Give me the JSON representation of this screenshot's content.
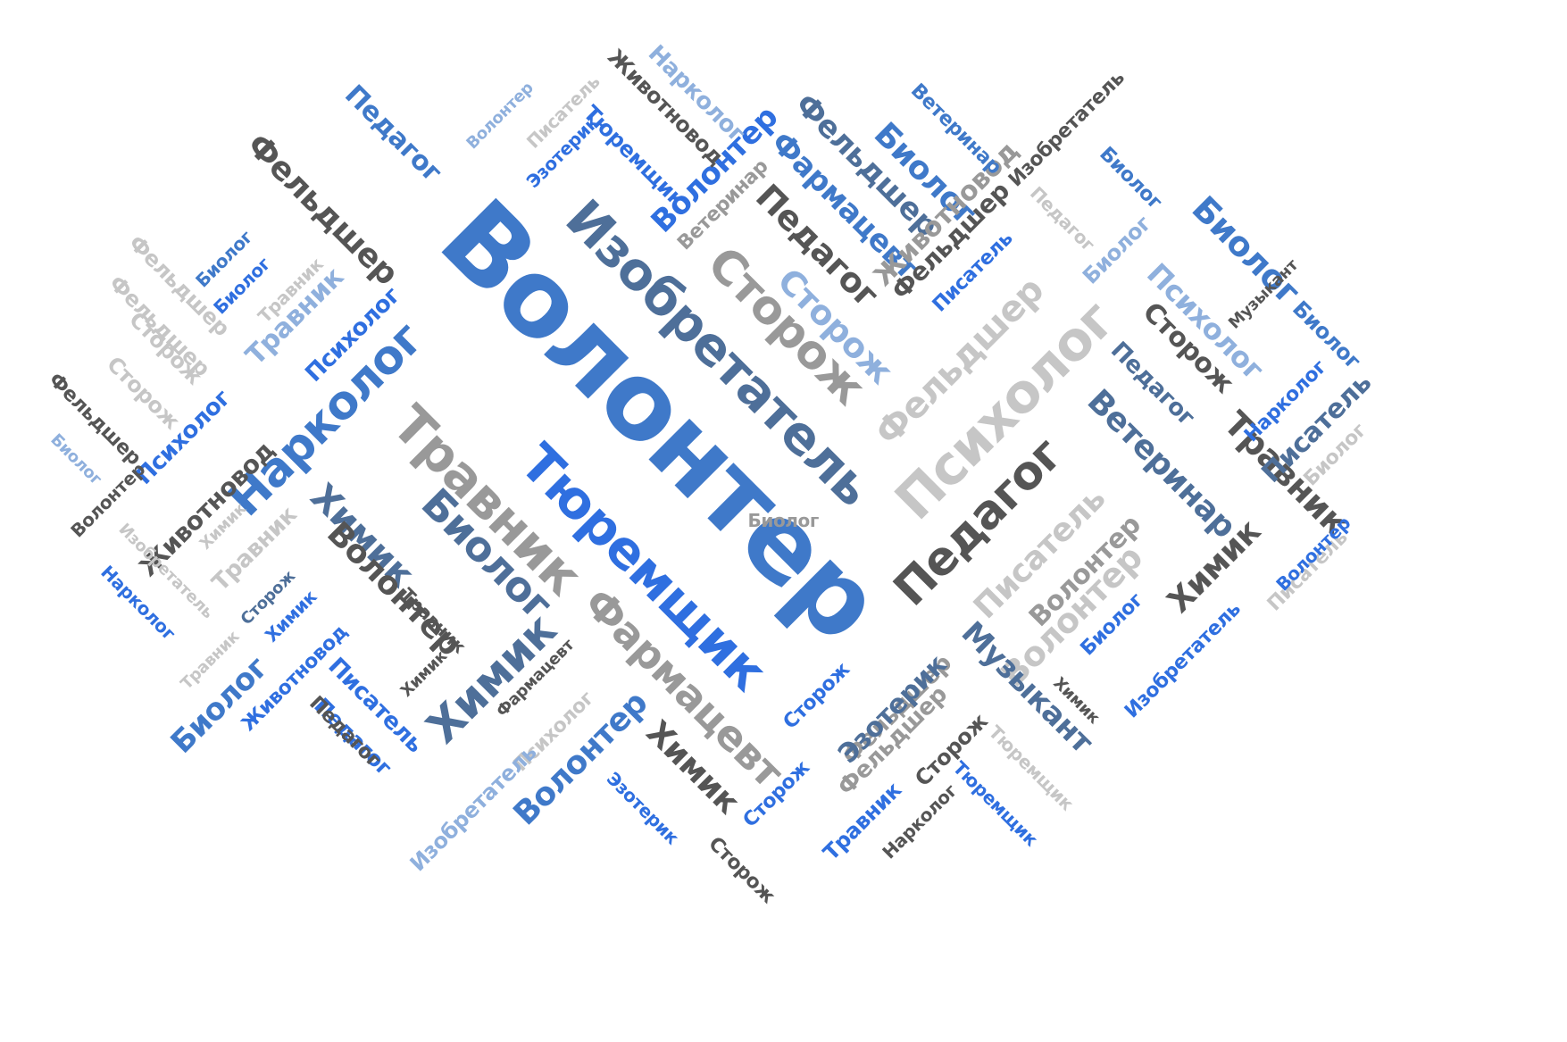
{
  "palette": {
    "mid_blue": "#3f79c9",
    "bright_blue": "#2f6fe0",
    "light_blue": "#8fb0dd",
    "slate_blue": "#4e6f99",
    "dark_grey": "#555555",
    "mid_grey": "#999999",
    "light_grey": "#c6c6c6"
  },
  "words": [
    {
      "text": "Волонтер"
    },
    {
      "text": "Изобретатель"
    },
    {
      "text": "Тюремщик"
    },
    {
      "text": "Травник"
    },
    {
      "text": "Сторож"
    },
    {
      "text": "Сторож"
    },
    {
      "text": "Фармацевт"
    },
    {
      "text": "Психолог"
    },
    {
      "text": "Педагог"
    },
    {
      "text": "Фельдшер"
    },
    {
      "text": "Нарколог"
    },
    {
      "text": "Биолог"
    },
    {
      "text": "Химик"
    },
    {
      "text": "Химик"
    },
    {
      "text": "Фельдшер"
    },
    {
      "text": "Волонтер"
    },
    {
      "text": "Писатель"
    },
    {
      "text": "Волонтер"
    },
    {
      "text": "Ветеринар"
    },
    {
      "text": "Музыкант"
    },
    {
      "text": "Травник"
    },
    {
      "text": "Химик"
    },
    {
      "text": "Волонтер"
    },
    {
      "text": "Биолог"
    },
    {
      "text": "Педагог"
    },
    {
      "text": "Биолог"
    },
    {
      "text": "Фельдшер"
    },
    {
      "text": "Фармацевт"
    },
    {
      "text": "Фельдшер"
    },
    {
      "text": "Фельдшер"
    },
    {
      "text": "Волонтер"
    },
    {
      "text": "Изобретатель"
    },
    {
      "text": "Сторож"
    },
    {
      "text": "Нарколог"
    },
    {
      "text": "Животновод"
    },
    {
      "text": "Тюремщик"
    },
    {
      "text": "Писатель"
    },
    {
      "text": "Ветеринар"
    },
    {
      "text": "Педагог"
    },
    {
      "text": "Животновод"
    },
    {
      "text": "Биолог"
    },
    {
      "text": "Педагог"
    },
    {
      "text": "Биолог"
    },
    {
      "text": "Ветеринар"
    },
    {
      "text": "Изобретатель"
    },
    {
      "text": "Животновод"
    },
    {
      "text": "Писатель"
    },
    {
      "text": "Биолог"
    },
    {
      "text": "Психолог"
    },
    {
      "text": "Музыкант"
    },
    {
      "text": "Сторож"
    },
    {
      "text": "Биолог"
    },
    {
      "text": "Нарколог"
    },
    {
      "text": "Писатель"
    },
    {
      "text": "Биолог"
    },
    {
      "text": "Волонтер"
    },
    {
      "text": "Педагог"
    },
    {
      "text": "Психолог"
    },
    {
      "text": "Травник"
    },
    {
      "text": "Биолог"
    },
    {
      "text": "Биолог"
    },
    {
      "text": "Фельдшер"
    },
    {
      "text": "Фельдшер"
    },
    {
      "text": "Травник"
    },
    {
      "text": "Психолог"
    },
    {
      "text": "Сторож"
    },
    {
      "text": "Фельдшер"
    },
    {
      "text": "Биолог"
    },
    {
      "text": "Нарколог"
    },
    {
      "text": "Животновод"
    },
    {
      "text": "Волонтер"
    },
    {
      "text": "Химик"
    },
    {
      "text": "Изобретатель"
    },
    {
      "text": "Травник"
    },
    {
      "text": "Педагог"
    },
    {
      "text": "Сторож"
    },
    {
      "text": "Химик"
    },
    {
      "text": "Травник"
    },
    {
      "text": "Травник"
    },
    {
      "text": "Биолог"
    },
    {
      "text": "Животновод"
    },
    {
      "text": "Писатель"
    },
    {
      "text": "Педагог"
    },
    {
      "text": "Химик"
    },
    {
      "text": "Фармацевт"
    },
    {
      "text": "Психолог"
    },
    {
      "text": "Волонтер"
    },
    {
      "text": "Изобретатель"
    },
    {
      "text": "Эзотерик"
    },
    {
      "text": "Сторож"
    },
    {
      "text": "Химик"
    },
    {
      "text": "Сторож"
    },
    {
      "text": "Сторож"
    },
    {
      "text": "Эзотерик"
    },
    {
      "text": "Фельдшер"
    },
    {
      "text": "Травник"
    },
    {
      "text": "Нарколог"
    },
    {
      "text": "Сторож"
    },
    {
      "text": "Тюремщик"
    },
    {
      "text": "Тюремщик"
    },
    {
      "text": "Химик"
    },
    {
      "text": "Биолог"
    },
    {
      "text": "Изобретатель"
    },
    {
      "text": "Волонтер"
    },
    {
      "text": "Волонтер"
    },
    {
      "text": "Писатель"
    },
    {
      "text": "Эзотерик"
    },
    {
      "text": "Биолог"
    }
  ]
}
